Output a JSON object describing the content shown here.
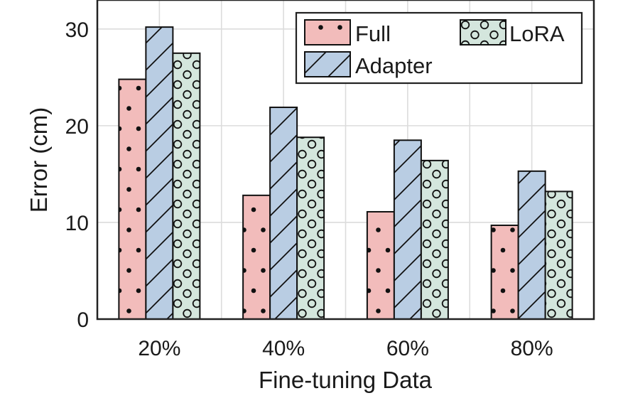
{
  "chart_data": {
    "type": "bar",
    "categories": [
      "20%",
      "40%",
      "60%",
      "80%"
    ],
    "series": [
      {
        "name": "Full",
        "values": [
          24.8,
          12.8,
          11.1,
          9.7
        ],
        "color": "#f2bcbb",
        "pattern": "dots"
      },
      {
        "name": "Adapter",
        "values": [
          30.2,
          21.9,
          18.5,
          15.3
        ],
        "color": "#b9cde3",
        "pattern": "diagonal"
      },
      {
        "name": "LoRA",
        "values": [
          27.5,
          18.8,
          16.4,
          13.2
        ],
        "color": "#d4e6dd",
        "pattern": "circles"
      }
    ],
    "xlabel": "Fine-tuning Data",
    "ylabel": "Error (cm)",
    "ylim": [
      0,
      33
    ],
    "yticks": [
      0,
      10,
      20,
      30
    ],
    "grid": true,
    "legend_position": "top-right"
  }
}
